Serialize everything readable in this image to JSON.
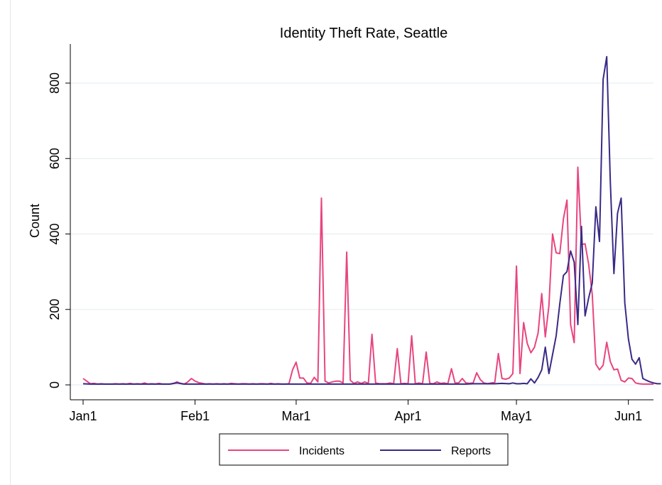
{
  "chart_data": {
    "type": "line",
    "title": "Identity Theft Rate, Seattle",
    "xlabel": "",
    "ylabel": "Count",
    "x_ticks": [
      "Jan1",
      "Feb1",
      "Mar1",
      "Apr1",
      "May1",
      "Jun1"
    ],
    "x_tick_days": [
      0,
      31,
      59,
      90,
      120,
      151
    ],
    "x_range_days": [
      0,
      155
    ],
    "y_ticks": [
      0,
      200,
      400,
      600,
      800
    ],
    "ylim": [
      0,
      900
    ],
    "grid": true,
    "legend_position": "bottom",
    "series": [
      {
        "name": "Incidents",
        "color": "#e8457f",
        "points": [
          [
            0,
            17
          ],
          [
            1,
            10
          ],
          [
            2,
            3
          ],
          [
            3,
            4
          ],
          [
            4,
            2
          ],
          [
            5,
            3
          ],
          [
            6,
            2
          ],
          [
            7,
            2
          ],
          [
            8,
            2
          ],
          [
            9,
            3
          ],
          [
            10,
            2
          ],
          [
            11,
            3
          ],
          [
            12,
            2
          ],
          [
            13,
            4
          ],
          [
            14,
            2
          ],
          [
            15,
            3
          ],
          [
            16,
            2
          ],
          [
            17,
            5
          ],
          [
            18,
            2
          ],
          [
            19,
            3
          ],
          [
            20,
            2
          ],
          [
            21,
            4
          ],
          [
            22,
            2
          ],
          [
            23,
            2
          ],
          [
            24,
            2
          ],
          [
            25,
            4
          ],
          [
            26,
            8
          ],
          [
            27,
            4
          ],
          [
            28,
            2
          ],
          [
            29,
            8
          ],
          [
            30,
            17
          ],
          [
            31,
            10
          ],
          [
            32,
            6
          ],
          [
            33,
            4
          ],
          [
            34,
            2
          ],
          [
            35,
            3
          ],
          [
            36,
            2
          ],
          [
            37,
            3
          ],
          [
            38,
            2
          ],
          [
            39,
            3
          ],
          [
            40,
            2
          ],
          [
            41,
            4
          ],
          [
            42,
            3
          ],
          [
            43,
            2
          ],
          [
            44,
            3
          ],
          [
            45,
            3
          ],
          [
            46,
            2
          ],
          [
            47,
            3
          ],
          [
            48,
            2
          ],
          [
            49,
            3
          ],
          [
            50,
            3
          ],
          [
            51,
            2
          ],
          [
            52,
            4
          ],
          [
            53,
            2
          ],
          [
            54,
            3
          ],
          [
            55,
            2
          ],
          [
            56,
            2
          ],
          [
            57,
            3
          ],
          [
            58,
            40
          ],
          [
            59,
            60
          ],
          [
            60,
            18
          ],
          [
            61,
            18
          ],
          [
            62,
            5
          ],
          [
            63,
            4
          ],
          [
            64,
            20
          ],
          [
            65,
            8
          ],
          [
            66,
            495
          ],
          [
            67,
            10
          ],
          [
            68,
            5
          ],
          [
            69,
            8
          ],
          [
            70,
            10
          ],
          [
            71,
            10
          ],
          [
            72,
            5
          ],
          [
            73,
            352
          ],
          [
            74,
            12
          ],
          [
            75,
            4
          ],
          [
            76,
            8
          ],
          [
            77,
            4
          ],
          [
            78,
            8
          ],
          [
            79,
            4
          ],
          [
            80,
            134
          ],
          [
            81,
            5
          ],
          [
            82,
            3
          ],
          [
            83,
            3
          ],
          [
            84,
            3
          ],
          [
            85,
            5
          ],
          [
            86,
            3
          ],
          [
            87,
            96
          ],
          [
            88,
            3
          ],
          [
            89,
            4
          ],
          [
            90,
            3
          ],
          [
            91,
            130
          ],
          [
            92,
            3
          ],
          [
            93,
            5
          ],
          [
            94,
            3
          ],
          [
            95,
            87
          ],
          [
            96,
            4
          ],
          [
            97,
            3
          ],
          [
            98,
            8
          ],
          [
            99,
            4
          ],
          [
            100,
            5
          ],
          [
            101,
            3
          ],
          [
            102,
            43
          ],
          [
            103,
            5
          ],
          [
            104,
            5
          ],
          [
            105,
            17
          ],
          [
            106,
            5
          ],
          [
            107,
            4
          ],
          [
            108,
            5
          ],
          [
            109,
            32
          ],
          [
            110,
            14
          ],
          [
            111,
            5
          ],
          [
            112,
            3
          ],
          [
            113,
            5
          ],
          [
            114,
            7
          ],
          [
            115,
            83
          ],
          [
            116,
            17
          ],
          [
            117,
            15
          ],
          [
            118,
            18
          ],
          [
            119,
            30
          ],
          [
            120,
            315
          ],
          [
            121,
            30
          ],
          [
            122,
            165
          ],
          [
            123,
            110
          ],
          [
            124,
            85
          ],
          [
            125,
            100
          ],
          [
            126,
            138
          ],
          [
            127,
            242
          ],
          [
            128,
            127
          ],
          [
            129,
            210
          ],
          [
            130,
            400
          ],
          [
            131,
            350
          ],
          [
            132,
            348
          ],
          [
            133,
            440
          ],
          [
            134,
            490
          ],
          [
            135,
            160
          ],
          [
            136,
            112
          ],
          [
            137,
            577
          ],
          [
            138,
            372
          ],
          [
            139,
            374
          ],
          [
            140,
            320
          ],
          [
            141,
            240
          ],
          [
            142,
            55
          ],
          [
            143,
            40
          ],
          [
            144,
            52
          ],
          [
            145,
            113
          ],
          [
            146,
            62
          ],
          [
            147,
            40
          ],
          [
            148,
            42
          ],
          [
            149,
            12
          ],
          [
            150,
            8
          ],
          [
            151,
            18
          ],
          [
            152,
            17
          ],
          [
            153,
            5
          ],
          [
            154,
            3
          ],
          [
            155,
            2
          ],
          [
            156,
            2
          ],
          [
            157,
            2
          ],
          [
            158,
            2
          ]
        ]
      },
      {
        "name": "Reports",
        "color": "#3a2a86",
        "points": [
          [
            0,
            3
          ],
          [
            2,
            2
          ],
          [
            4,
            2
          ],
          [
            6,
            2
          ],
          [
            8,
            2
          ],
          [
            10,
            2
          ],
          [
            12,
            2
          ],
          [
            14,
            2
          ],
          [
            16,
            2
          ],
          [
            18,
            2
          ],
          [
            20,
            2
          ],
          [
            22,
            2
          ],
          [
            24,
            2
          ],
          [
            26,
            5
          ],
          [
            28,
            2
          ],
          [
            30,
            2
          ],
          [
            32,
            2
          ],
          [
            34,
            2
          ],
          [
            36,
            2
          ],
          [
            38,
            2
          ],
          [
            40,
            2
          ],
          [
            42,
            2
          ],
          [
            44,
            2
          ],
          [
            46,
            2
          ],
          [
            48,
            2
          ],
          [
            50,
            2
          ],
          [
            52,
            2
          ],
          [
            54,
            2
          ],
          [
            56,
            2
          ],
          [
            58,
            2
          ],
          [
            60,
            2
          ],
          [
            62,
            2
          ],
          [
            64,
            2
          ],
          [
            66,
            2
          ],
          [
            68,
            2
          ],
          [
            70,
            2
          ],
          [
            72,
            2
          ],
          [
            74,
            2
          ],
          [
            76,
            2
          ],
          [
            78,
            2
          ],
          [
            80,
            2
          ],
          [
            82,
            2
          ],
          [
            84,
            2
          ],
          [
            86,
            2
          ],
          [
            88,
            2
          ],
          [
            90,
            2
          ],
          [
            92,
            2
          ],
          [
            94,
            2
          ],
          [
            96,
            2
          ],
          [
            98,
            2
          ],
          [
            100,
            2
          ],
          [
            102,
            2
          ],
          [
            104,
            2
          ],
          [
            106,
            2
          ],
          [
            108,
            3
          ],
          [
            110,
            3
          ],
          [
            112,
            3
          ],
          [
            114,
            3
          ],
          [
            116,
            4
          ],
          [
            118,
            3
          ],
          [
            119,
            5
          ],
          [
            120,
            3
          ],
          [
            121,
            3
          ],
          [
            122,
            4
          ],
          [
            123,
            3
          ],
          [
            124,
            16
          ],
          [
            125,
            5
          ],
          [
            126,
            20
          ],
          [
            127,
            40
          ],
          [
            128,
            100
          ],
          [
            129,
            30
          ],
          [
            130,
            80
          ],
          [
            131,
            130
          ],
          [
            132,
            215
          ],
          [
            133,
            290
          ],
          [
            134,
            300
          ],
          [
            135,
            355
          ],
          [
            136,
            325
          ],
          [
            137,
            160
          ],
          [
            138,
            420
          ],
          [
            139,
            183
          ],
          [
            140,
            230
          ],
          [
            141,
            270
          ],
          [
            142,
            472
          ],
          [
            143,
            380
          ],
          [
            144,
            810
          ],
          [
            145,
            870
          ],
          [
            146,
            540
          ],
          [
            147,
            295
          ],
          [
            148,
            455
          ],
          [
            149,
            495
          ],
          [
            150,
            218
          ],
          [
            151,
            122
          ],
          [
            152,
            68
          ],
          [
            153,
            55
          ],
          [
            154,
            72
          ],
          [
            155,
            17
          ],
          [
            156,
            12
          ],
          [
            157,
            8
          ],
          [
            158,
            5
          ],
          [
            159,
            3
          ],
          [
            160,
            3
          ]
        ]
      }
    ]
  }
}
